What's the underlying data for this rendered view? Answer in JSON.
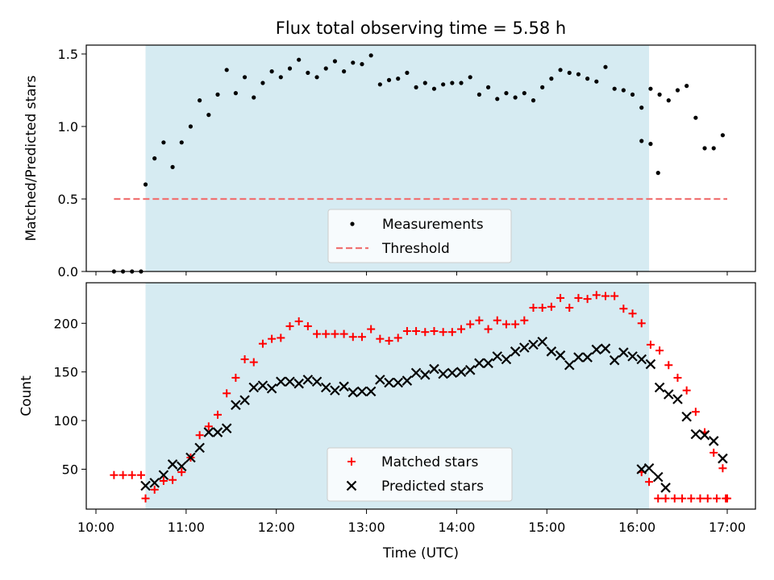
{
  "chart_data": [
    {
      "type": "scatter",
      "title": "Flux total observing time = 5.58 h",
      "xlabel": "",
      "ylabel": "Matched/Predicted stars",
      "xlim": [
        "10:00",
        "17:00"
      ],
      "ylim": [
        0,
        1.55
      ],
      "yticks": [
        "0.0",
        "0.5",
        "1.0",
        "1.5"
      ],
      "observing_window": [
        "10:33",
        "16:08"
      ],
      "legend": "lower center",
      "series": [
        {
          "name": "Measurements",
          "marker": "dot",
          "color": "#000000",
          "points": [
            [
              "10:12",
              0
            ],
            [
              "10:18",
              0
            ],
            [
              "10:24",
              0
            ],
            [
              "10:30",
              0
            ],
            [
              "10:33",
              0.6
            ],
            [
              "10:39",
              0.78
            ],
            [
              "10:45",
              0.89
            ],
            [
              "10:51",
              0.72
            ],
            [
              "10:57",
              0.89
            ],
            [
              "11:03",
              1.0
            ],
            [
              "11:09",
              1.18
            ],
            [
              "11:15",
              1.08
            ],
            [
              "11:21",
              1.22
            ],
            [
              "11:27",
              1.39
            ],
            [
              "11:33",
              1.23
            ],
            [
              "11:39",
              1.34
            ],
            [
              "11:45",
              1.2
            ],
            [
              "11:51",
              1.3
            ],
            [
              "11:57",
              1.38
            ],
            [
              "12:03",
              1.34
            ],
            [
              "12:09",
              1.4
            ],
            [
              "12:15",
              1.46
            ],
            [
              "12:21",
              1.37
            ],
            [
              "12:27",
              1.34
            ],
            [
              "12:33",
              1.4
            ],
            [
              "12:39",
              1.45
            ],
            [
              "12:45",
              1.38
            ],
            [
              "12:51",
              1.44
            ],
            [
              "12:57",
              1.43
            ],
            [
              "13:03",
              1.49
            ],
            [
              "13:09",
              1.29
            ],
            [
              "13:15",
              1.32
            ],
            [
              "13:21",
              1.33
            ],
            [
              "13:27",
              1.37
            ],
            [
              "13:33",
              1.27
            ],
            [
              "13:39",
              1.3
            ],
            [
              "13:45",
              1.26
            ],
            [
              "13:51",
              1.29
            ],
            [
              "13:57",
              1.3
            ],
            [
              "14:03",
              1.3
            ],
            [
              "14:09",
              1.34
            ],
            [
              "14:15",
              1.22
            ],
            [
              "14:21",
              1.27
            ],
            [
              "14:27",
              1.19
            ],
            [
              "14:33",
              1.23
            ],
            [
              "14:39",
              1.2
            ],
            [
              "14:45",
              1.23
            ],
            [
              "14:51",
              1.18
            ],
            [
              "14:57",
              1.27
            ],
            [
              "15:03",
              1.33
            ],
            [
              "15:09",
              1.39
            ],
            [
              "15:15",
              1.37
            ],
            [
              "15:21",
              1.36
            ],
            [
              "15:27",
              1.33
            ],
            [
              "15:33",
              1.31
            ],
            [
              "15:39",
              1.41
            ],
            [
              "15:45",
              1.26
            ],
            [
              "15:51",
              1.25
            ],
            [
              "15:57",
              1.22
            ],
            [
              "16:03",
              1.13
            ],
            [
              "16:09",
              1.26
            ],
            [
              "16:15",
              1.22
            ],
            [
              "16:21",
              1.18
            ],
            [
              "16:27",
              1.25
            ],
            [
              "16:33",
              1.28
            ],
            [
              "16:39",
              1.06
            ],
            [
              "16:45",
              0.85
            ],
            [
              "16:51",
              0.85
            ],
            [
              "16:57",
              0.94
            ],
            [
              "16:03",
              0.9
            ],
            [
              "16:09",
              0.88
            ],
            [
              "16:14",
              0.68
            ]
          ]
        },
        {
          "name": "Threshold",
          "style": "dashed",
          "color": "#f07272",
          "points": [
            [
              "10:12",
              0.5
            ],
            [
              "17:00",
              0.5
            ]
          ]
        }
      ]
    },
    {
      "type": "scatter",
      "title": "",
      "xlabel": "Time (UTC)",
      "ylabel": "Count",
      "xlim": [
        "10:00",
        "17:00"
      ],
      "ylim": [
        9,
        240
      ],
      "xticks": [
        "10:00",
        "11:00",
        "12:00",
        "13:00",
        "14:00",
        "15:00",
        "16:00",
        "17:00"
      ],
      "yticks": [
        "50",
        "100",
        "150",
        "200"
      ],
      "observing_window": [
        "10:33",
        "16:08"
      ],
      "legend": "lower center",
      "series": [
        {
          "name": "Matched stars",
          "marker": "plus",
          "color": "#ff0000",
          "points": [
            [
              "10:12",
              44
            ],
            [
              "10:18",
              44
            ],
            [
              "10:24",
              44
            ],
            [
              "10:30",
              44
            ],
            [
              "10:33",
              20
            ],
            [
              "10:39",
              29
            ],
            [
              "10:45",
              38
            ],
            [
              "10:51",
              39
            ],
            [
              "10:57",
              47
            ],
            [
              "11:03",
              62
            ],
            [
              "11:09",
              85
            ],
            [
              "11:15",
              94
            ],
            [
              "11:21",
              106
            ],
            [
              "11:27",
              128
            ],
            [
              "11:33",
              144
            ],
            [
              "11:39",
              163
            ],
            [
              "11:45",
              160
            ],
            [
              "11:51",
              179
            ],
            [
              "11:57",
              184
            ],
            [
              "12:03",
              185
            ],
            [
              "12:09",
              197
            ],
            [
              "12:15",
              202
            ],
            [
              "12:21",
              197
            ],
            [
              "12:27",
              189
            ],
            [
              "12:33",
              189
            ],
            [
              "12:39",
              189
            ],
            [
              "12:45",
              189
            ],
            [
              "12:51",
              186
            ],
            [
              "12:57",
              186
            ],
            [
              "13:03",
              194
            ],
            [
              "13:09",
              184
            ],
            [
              "13:15",
              182
            ],
            [
              "13:21",
              185
            ],
            [
              "13:27",
              192
            ],
            [
              "13:33",
              192
            ],
            [
              "13:39",
              191
            ],
            [
              "13:45",
              192
            ],
            [
              "13:51",
              191
            ],
            [
              "13:57",
              191
            ],
            [
              "14:03",
              194
            ],
            [
              "14:09",
              199
            ],
            [
              "14:15",
              203
            ],
            [
              "14:21",
              194
            ],
            [
              "14:27",
              203
            ],
            [
              "14:33",
              199
            ],
            [
              "14:39",
              199
            ],
            [
              "14:45",
              203
            ],
            [
              "14:51",
              216
            ],
            [
              "14:57",
              216
            ],
            [
              "15:03",
              217
            ],
            [
              "15:09",
              226
            ],
            [
              "15:15",
              216
            ],
            [
              "15:21",
              226
            ],
            [
              "15:27",
              225
            ],
            [
              "15:33",
              229
            ],
            [
              "15:39",
              228
            ],
            [
              "15:45",
              228
            ],
            [
              "15:51",
              215
            ],
            [
              "15:57",
              210
            ],
            [
              "16:03",
              200
            ],
            [
              "16:09",
              178
            ],
            [
              "16:15",
              172
            ],
            [
              "16:21",
              157
            ],
            [
              "16:27",
              144
            ],
            [
              "16:33",
              131
            ],
            [
              "16:39",
              109
            ],
            [
              "16:45",
              88
            ],
            [
              "16:51",
              67
            ],
            [
              "16:57",
              51
            ],
            [
              "16:03",
              47
            ],
            [
              "16:08",
              37
            ],
            [
              "16:14",
              20
            ],
            [
              "16:19",
              20
            ],
            [
              "16:25",
              20
            ],
            [
              "16:30",
              20
            ],
            [
              "16:36",
              20
            ],
            [
              "16:42",
              20
            ],
            [
              "16:47",
              20
            ],
            [
              "16:53",
              20
            ],
            [
              "16:59",
              20
            ],
            [
              "17:00",
              20
            ]
          ]
        },
        {
          "name": "Predicted stars",
          "marker": "x",
          "color": "#000000",
          "points": [
            [
              "10:33",
              33
            ],
            [
              "10:39",
              36
            ],
            [
              "10:45",
              44
            ],
            [
              "10:51",
              55
            ],
            [
              "10:57",
              53
            ],
            [
              "11:03",
              62
            ],
            [
              "11:09",
              72
            ],
            [
              "11:15",
              88
            ],
            [
              "11:21",
              88
            ],
            [
              "11:27",
              92
            ],
            [
              "11:33",
              116
            ],
            [
              "11:39",
              121
            ],
            [
              "11:45",
              134
            ],
            [
              "11:51",
              136
            ],
            [
              "11:57",
              133
            ],
            [
              "12:03",
              140
            ],
            [
              "12:09",
              140
            ],
            [
              "12:15",
              138
            ],
            [
              "12:21",
              142
            ],
            [
              "12:27",
              140
            ],
            [
              "12:33",
              134
            ],
            [
              "12:39",
              131
            ],
            [
              "12:45",
              135
            ],
            [
              "12:51",
              129
            ],
            [
              "12:57",
              130
            ],
            [
              "13:03",
              130
            ],
            [
              "13:09",
              142
            ],
            [
              "13:15",
              139
            ],
            [
              "13:21",
              139
            ],
            [
              "13:27",
              141
            ],
            [
              "13:33",
              149
            ],
            [
              "13:39",
              147
            ],
            [
              "13:45",
              153
            ],
            [
              "13:51",
              148
            ],
            [
              "13:57",
              149
            ],
            [
              "14:03",
              150
            ],
            [
              "14:09",
              152
            ],
            [
              "14:15",
              159
            ],
            [
              "14:21",
              159
            ],
            [
              "14:27",
              166
            ],
            [
              "14:33",
              163
            ],
            [
              "14:39",
              171
            ],
            [
              "14:45",
              175
            ],
            [
              "14:51",
              178
            ],
            [
              "14:57",
              181
            ],
            [
              "15:03",
              171
            ],
            [
              "15:09",
              167
            ],
            [
              "15:15",
              157
            ],
            [
              "15:21",
              165
            ],
            [
              "15:27",
              165
            ],
            [
              "15:33",
              173
            ],
            [
              "15:39",
              174
            ],
            [
              "15:45",
              162
            ],
            [
              "15:51",
              170
            ],
            [
              "15:57",
              166
            ],
            [
              "16:03",
              163
            ],
            [
              "16:09",
              158
            ],
            [
              "16:15",
              134
            ],
            [
              "16:21",
              127
            ],
            [
              "16:27",
              122
            ],
            [
              "16:33",
              104
            ],
            [
              "16:39",
              86
            ],
            [
              "16:45",
              85
            ],
            [
              "16:51",
              79
            ],
            [
              "16:57",
              61
            ],
            [
              "16:03",
              50
            ],
            [
              "16:08",
              51
            ],
            [
              "16:14",
              42
            ],
            [
              "16:19",
              31
            ]
          ]
        }
      ]
    }
  ]
}
